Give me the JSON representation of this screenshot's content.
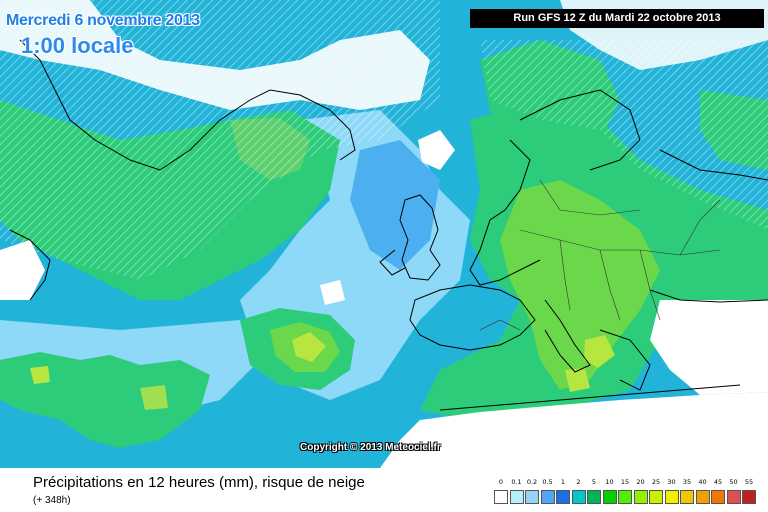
{
  "header": {
    "date": "Mercredi 6 novembre 2013",
    "local_time": "1:00 locale",
    "run": "Run GFS 12 Z du Mardi 22 octobre 2013"
  },
  "map": {
    "copyright": "Copyright © 2013 Meteociel.fr",
    "ocean_color": "#2c9ef2",
    "land_color": "#ffffff"
  },
  "footer": {
    "title": "Précipitations en 12 heures (mm), risque de neige",
    "subtitle": "(+ 348h)"
  },
  "legend": {
    "labels": [
      "0",
      "0.1",
      "0.2",
      "0.5",
      "1",
      "2",
      "5",
      "10",
      "15",
      "20",
      "25",
      "30",
      "35",
      "40",
      "45",
      "50",
      "55"
    ],
    "colors": [
      "#ffffff",
      "#b4f0fa",
      "#96d2fa",
      "#50a5f5",
      "#1e6ee6",
      "#00c8c8",
      "#00b45a",
      "#00d200",
      "#50f000",
      "#96f000",
      "#c8f000",
      "#f0f000",
      "#f0c800",
      "#f0a000",
      "#f07800",
      "#e05050",
      "#c02020"
    ]
  }
}
